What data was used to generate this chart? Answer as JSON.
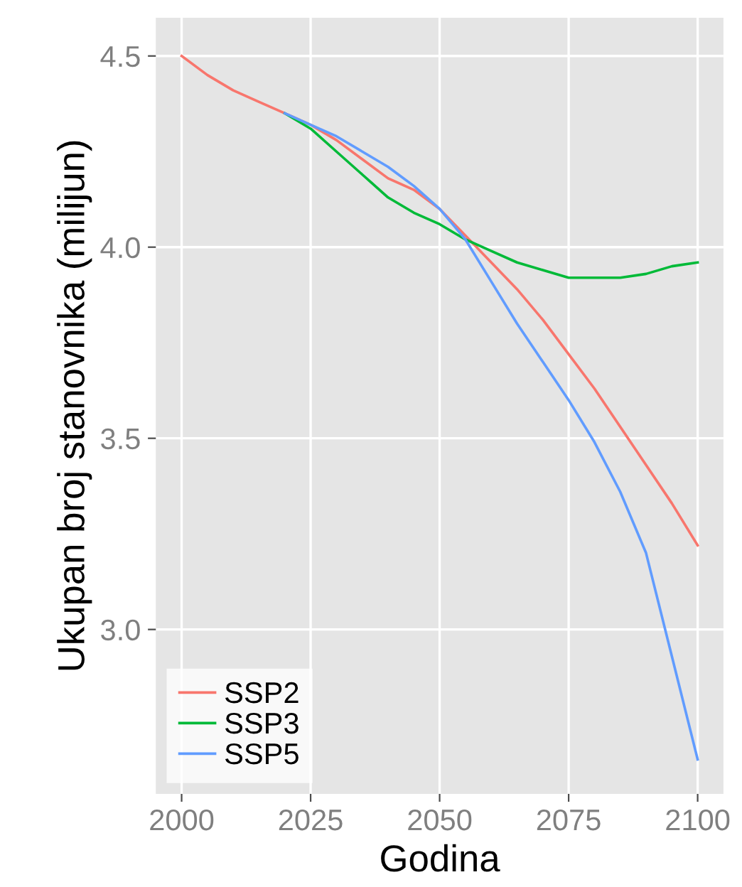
{
  "chart_data": {
    "type": "line",
    "xlabel": "Godina",
    "ylabel": "Ukupan broj stanovnika (milijun)",
    "x": [
      2000,
      2005,
      2010,
      2015,
      2020,
      2025,
      2030,
      2035,
      2040,
      2045,
      2050,
      2055,
      2060,
      2065,
      2070,
      2075,
      2080,
      2085,
      2090,
      2095,
      2100
    ],
    "series": [
      {
        "name": "SSP2",
        "color": "#f8766d",
        "values": [
          4.5,
          4.45,
          4.41,
          4.38,
          4.35,
          4.32,
          4.28,
          4.23,
          4.18,
          4.15,
          4.1,
          4.03,
          3.96,
          3.89,
          3.81,
          3.72,
          3.63,
          3.53,
          3.43,
          3.33,
          3.22
        ]
      },
      {
        "name": "SSP3",
        "color": "#00ba38",
        "values": [
          null,
          null,
          null,
          null,
          4.35,
          4.31,
          4.25,
          4.19,
          4.13,
          4.09,
          4.06,
          4.02,
          3.99,
          3.96,
          3.94,
          3.92,
          3.92,
          3.92,
          3.93,
          3.95,
          3.96
        ]
      },
      {
        "name": "SSP5",
        "color": "#619cff",
        "values": [
          null,
          null,
          null,
          null,
          4.35,
          4.32,
          4.29,
          4.25,
          4.21,
          4.16,
          4.1,
          4.02,
          3.91,
          3.8,
          3.7,
          3.6,
          3.49,
          3.36,
          3.2,
          2.93,
          2.66
        ]
      }
    ],
    "xlim": [
      1995,
      2105
    ],
    "ylim": [
      2.57,
      4.6
    ],
    "xticks": [
      2000,
      2025,
      2050,
      2075,
      2100
    ],
    "yticks": [
      {
        "value": 3,
        "label": "3.0"
      },
      3.5,
      {
        "value": 4,
        "label": "4.0"
      },
      4.5
    ],
    "grid": true,
    "legend": "bottom left",
    "marker": "none",
    "line_style": "solid"
  }
}
